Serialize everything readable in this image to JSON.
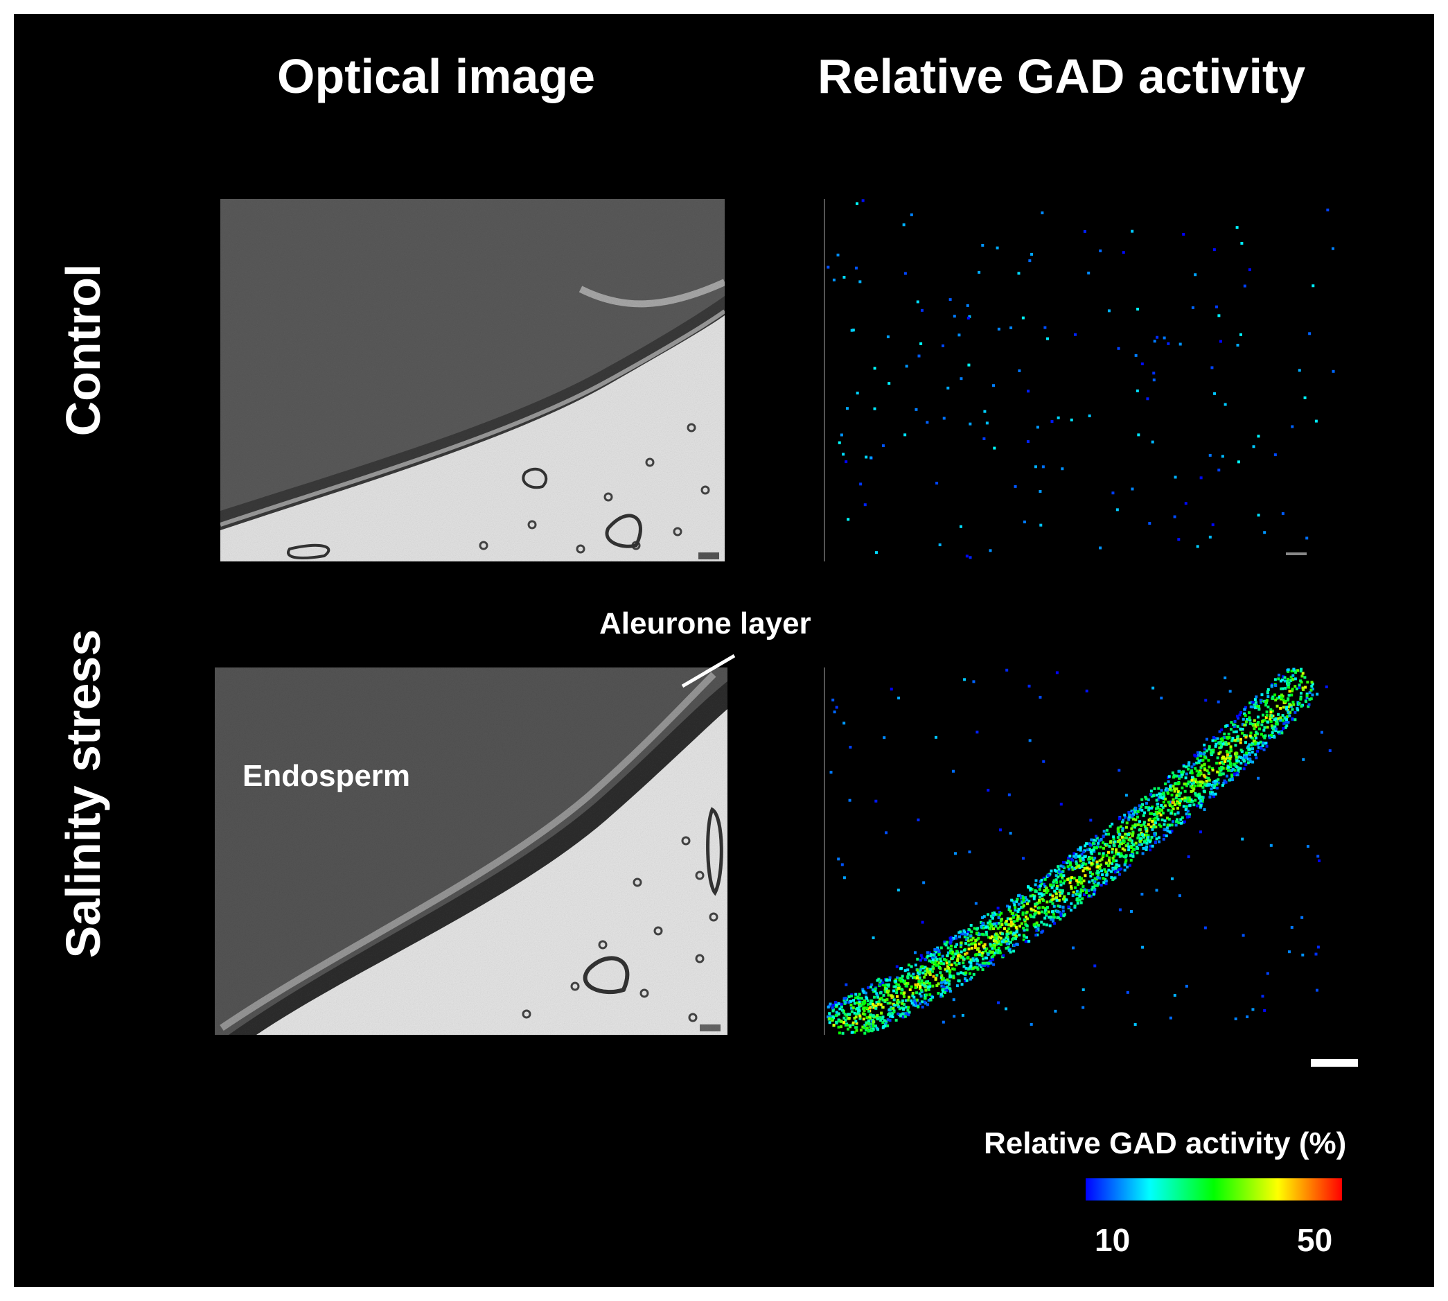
{
  "columns": {
    "optical": "Optical image",
    "activity": "Relative GAD activity"
  },
  "rows": {
    "control": "Control",
    "salinity": "Salinity stress"
  },
  "annotations": {
    "aleurone": "Aleurone layer",
    "endosperm": "Endosperm"
  },
  "colorbar": {
    "title": "Relative GAD activity (%)",
    "min_label": "10",
    "max_label": "50",
    "colors": [
      "#0000ff",
      "#00ffff",
      "#00ff00",
      "#ffff00",
      "#ff0000"
    ]
  },
  "colors": {
    "background": "#000000",
    "text": "#ffffff"
  }
}
